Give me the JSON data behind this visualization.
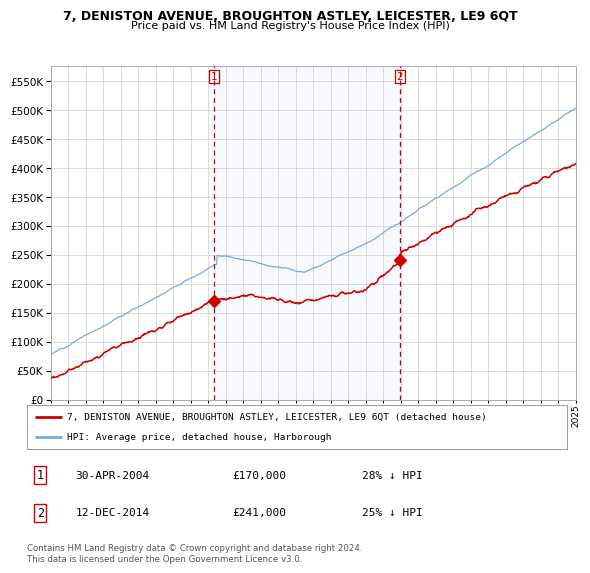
{
  "title": "7, DENISTON AVENUE, BROUGHTON ASTLEY, LEICESTER, LE9 6QT",
  "subtitle": "Price paid vs. HM Land Registry's House Price Index (HPI)",
  "legend_line1": "7, DENISTON AVENUE, BROUGHTON ASTLEY, LEICESTER, LE9 6QT (detached house)",
  "legend_line2": "HPI: Average price, detached house, Harborough",
  "annotation1_date": "30-APR-2004",
  "annotation1_price": "£170,000",
  "annotation1_hpi": "28% ↓ HPI",
  "annotation2_date": "12-DEC-2014",
  "annotation2_price": "£241,000",
  "annotation2_hpi": "25% ↓ HPI",
  "footer": "Contains HM Land Registry data © Crown copyright and database right 2024.\nThis data is licensed under the Open Government Licence v3.0.",
  "red_line_color": "#cc0000",
  "blue_line_color": "#7aacdc",
  "shade_color": "#ddeeff",
  "background_color": "#ffffff",
  "grid_color": "#cccccc",
  "ylim": [
    0,
    575000
  ],
  "yticks": [
    0,
    50000,
    100000,
    150000,
    200000,
    250000,
    300000,
    350000,
    400000,
    450000,
    500000,
    550000
  ],
  "sale1_x": 2004.33,
  "sale1_y": 170000,
  "sale2_x": 2014.95,
  "sale2_y": 241000,
  "xlim_start": 1995,
  "xlim_end": 2025
}
